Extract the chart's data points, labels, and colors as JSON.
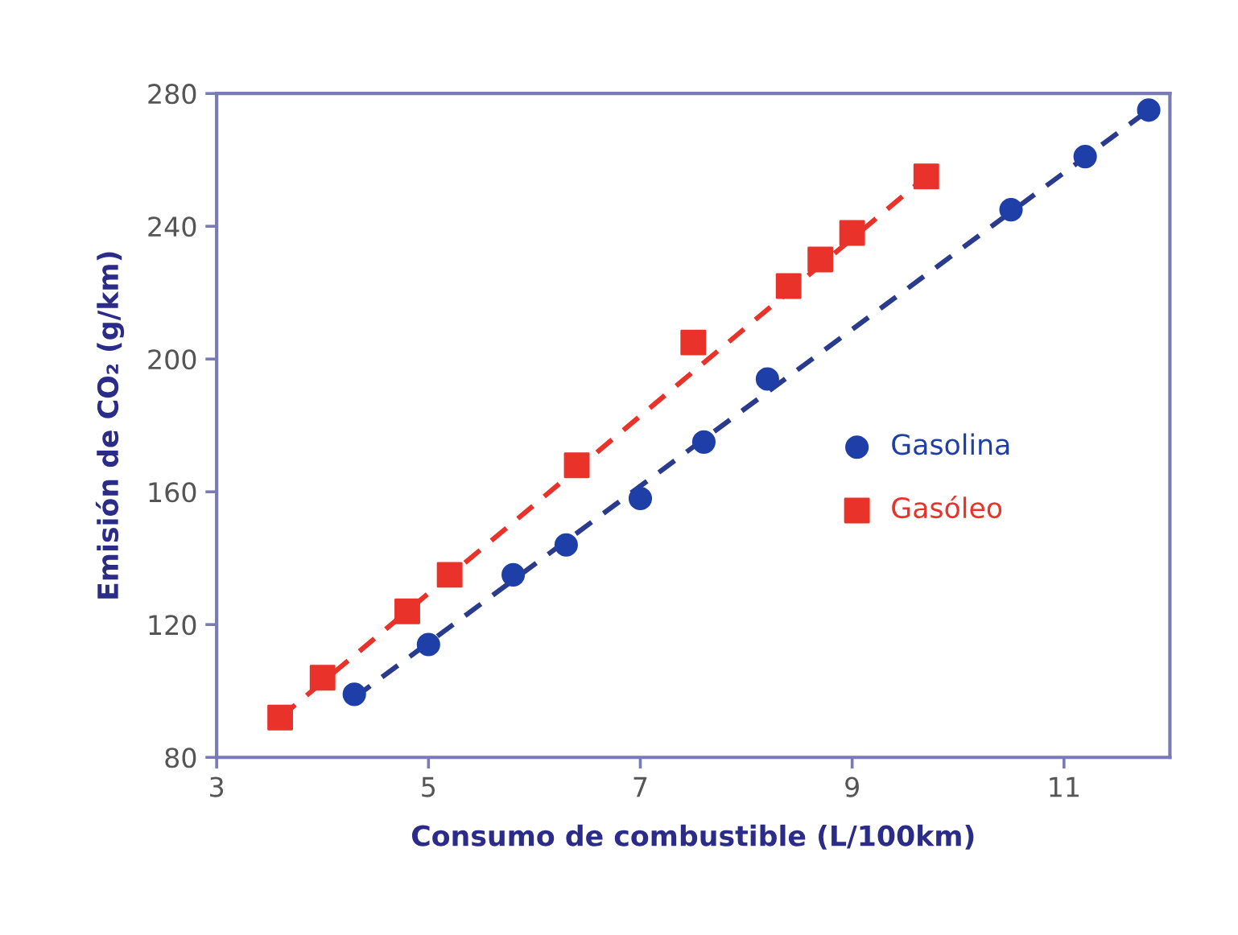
{
  "chart_data": {
    "type": "scatter",
    "xlabel": "Consumo de combustible (L/100km)",
    "ylabel": "Emisión de CO₂ (g/km)",
    "xlim": [
      3,
      12
    ],
    "xticks": [
      3,
      5,
      7,
      9,
      11
    ],
    "ylim": [
      80,
      280
    ],
    "yticks": [
      80,
      120,
      160,
      200,
      240,
      280
    ],
    "grid": false,
    "legend": "right",
    "series": [
      {
        "name": "Gasolina",
        "marker": "circle",
        "color": "#1f3fa8",
        "x": [
          4.3,
          5.0,
          5.8,
          6.3,
          7.0,
          7.6,
          8.2,
          10.5,
          11.2,
          11.8
        ],
        "values": [
          99,
          114,
          135,
          144,
          158,
          175,
          194,
          245,
          261,
          275
        ]
      },
      {
        "name": "Gasóleo",
        "marker": "square",
        "color": "#e8322a",
        "x": [
          3.6,
          4.0,
          4.8,
          5.2,
          6.4,
          7.5,
          8.4,
          8.7,
          9.0,
          9.7
        ],
        "values": [
          92,
          104,
          124,
          135,
          168,
          205,
          222,
          230,
          238,
          255
        ]
      },
      {
        "type": "line",
        "line_style": "dashed",
        "color": "#2a3a8c",
        "x": [
          4.3,
          11.8
        ],
        "values": [
          98,
          275
        ]
      },
      {
        "type": "line",
        "line_style": "dashed",
        "color": "#e8322a",
        "x": [
          3.6,
          9.7
        ],
        "values": [
          92,
          255
        ]
      }
    ]
  }
}
